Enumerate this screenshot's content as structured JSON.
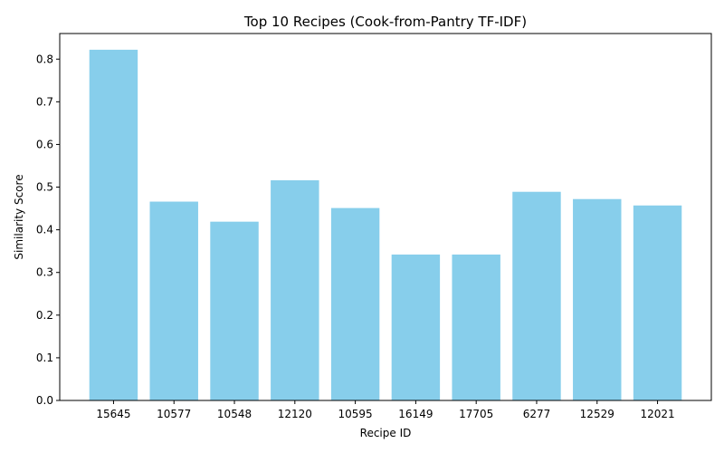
{
  "chart_data": {
    "type": "bar",
    "title": "Top 10 Recipes (Cook-from-Pantry TF-IDF)",
    "xlabel": "Recipe ID",
    "ylabel": "Similarity Score",
    "categories": [
      "15645",
      "10577",
      "10548",
      "12120",
      "10595",
      "16149",
      "17705",
      "6277",
      "12529",
      "12021"
    ],
    "values": [
      0.822,
      0.466,
      0.419,
      0.516,
      0.451,
      0.342,
      0.342,
      0.489,
      0.472,
      0.457
    ],
    "ylim": [
      0,
      0.86
    ],
    "yticks": [
      0.0,
      0.1,
      0.2,
      0.3,
      0.4,
      0.5,
      0.6,
      0.7,
      0.8
    ],
    "ytick_labels": [
      "0.0",
      "0.1",
      "0.2",
      "0.3",
      "0.4",
      "0.5",
      "0.6",
      "0.7",
      "0.8"
    ],
    "grid": false,
    "bar_color": "#87ceeb"
  }
}
